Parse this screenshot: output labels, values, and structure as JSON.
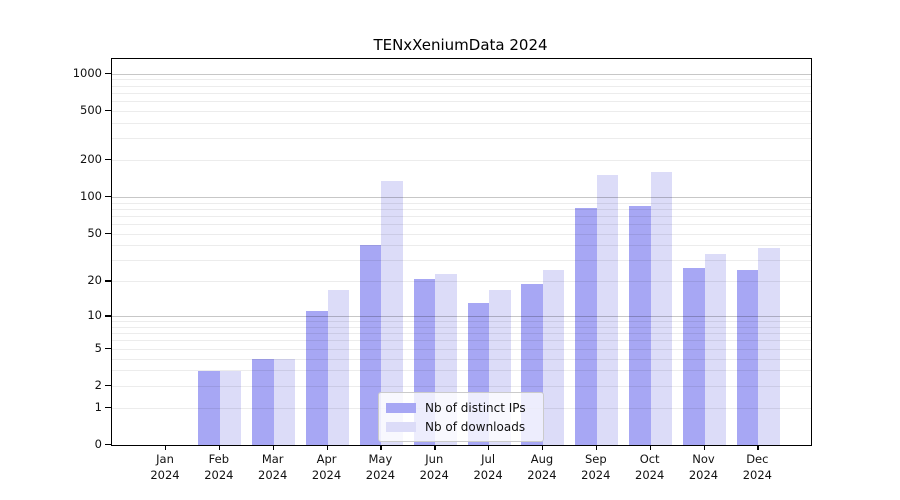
{
  "chart_data": {
    "type": "bar",
    "title": "TENxXeniumData 2024",
    "year_label": "2024",
    "categories": [
      "Jan",
      "Feb",
      "Mar",
      "Apr",
      "May",
      "Jun",
      "Jul",
      "Aug",
      "Sep",
      "Oct",
      "Nov",
      "Dec"
    ],
    "series": [
      {
        "name": "Nb of distinct IPs",
        "color": "#a7a7f4",
        "values": [
          0,
          3,
          4,
          11,
          40,
          21,
          13,
          19,
          82,
          85,
          26,
          25
        ]
      },
      {
        "name": "Nb of downloads",
        "color": "#dcdcf8",
        "values": [
          0,
          3,
          4,
          17,
          135,
          23,
          17,
          25,
          150,
          160,
          34,
          38
        ]
      }
    ],
    "yscale": "log1p",
    "ytick_values": [
      0,
      1,
      2,
      5,
      10,
      20,
      50,
      100,
      200,
      500,
      1000
    ],
    "ylim": [
      0,
      1300
    ],
    "grid": true,
    "legend_position": "bottom-center"
  }
}
